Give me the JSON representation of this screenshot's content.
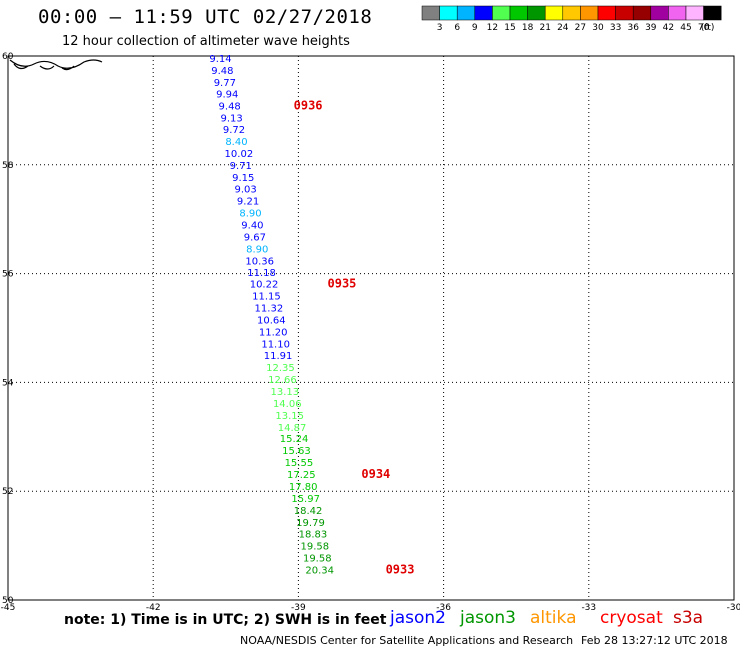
{
  "header": {
    "title": "00:00 – 11:59 UTC 02/27/2018",
    "subtitle": "12 hour collection of altimeter wave heights"
  },
  "colorbar": {
    "unit": "(ft)",
    "colors": [
      "#808080",
      "#00ffff",
      "#00b4ff",
      "#0000ff",
      "#50ff50",
      "#00c800",
      "#009600",
      "#ffff00",
      "#ffc800",
      "#ff9600",
      "#ff0000",
      "#c80000",
      "#960000",
      "#a000a0",
      "#f064f0",
      "#ffb4ff",
      "#000000"
    ],
    "labels": [
      "3",
      "6",
      "9",
      "12",
      "15",
      "18",
      "21",
      "24",
      "27",
      "30",
      "33",
      "36",
      "39",
      "42",
      "45",
      "70"
    ]
  },
  "footer": {
    "note": "note: 1) Time is in UTC; 2) SWH is in feet",
    "credit": "NOAA/NESDIS Center for Satellite Applications and Research",
    "timestamp": "Feb 28 13:27:12 UTC 2018"
  },
  "satellites": [
    {
      "name": "jason2",
      "color": "#0000ff"
    },
    {
      "name": "jason3",
      "color": "#009600"
    },
    {
      "name": "altika",
      "color": "#ff9600"
    },
    {
      "name": "cryosat",
      "color": "#ff0000"
    },
    {
      "name": "s3a",
      "color": "#c80000"
    }
  ],
  "chart_data": {
    "type": "scatter",
    "title": "12 hour collection of altimeter wave heights",
    "xlim": [
      -45,
      -30
    ],
    "ylim": [
      50,
      60
    ],
    "x_ticks": [
      -45,
      -42,
      -39,
      -36,
      -33,
      -30
    ],
    "x_tick_labels": [
      "-45",
      "-42",
      "-39",
      "-36",
      "-33",
      "-30"
    ],
    "y_ticks": [
      50,
      52,
      54,
      56,
      58,
      60
    ],
    "y_tick_labels": [
      "50",
      "52",
      "54",
      "56",
      "58",
      "60"
    ],
    "grid": true,
    "series": [
      {
        "name": "jason2",
        "points": [
          {
            "lon": -40.61,
            "lat": 59.89,
            "swh": "9.14"
          },
          {
            "lon": -40.57,
            "lat": 59.67,
            "swh": "9.48"
          },
          {
            "lon": -40.52,
            "lat": 59.45,
            "swh": "9.77"
          },
          {
            "lon": -40.47,
            "lat": 59.24,
            "swh": "9.94"
          },
          {
            "lon": -40.42,
            "lat": 59.02,
            "swh": "9.48"
          },
          {
            "lon": -40.38,
            "lat": 58.8,
            "swh": "9.13"
          },
          {
            "lon": -40.33,
            "lat": 58.58,
            "swh": "9.72"
          },
          {
            "lon": -40.28,
            "lat": 58.36,
            "swh": "8.40"
          },
          {
            "lon": -40.23,
            "lat": 58.14,
            "swh": "10.02"
          },
          {
            "lon": -40.19,
            "lat": 57.92,
            "swh": "9.71"
          },
          {
            "lon": -40.14,
            "lat": 57.7,
            "swh": "9.15"
          },
          {
            "lon": -40.09,
            "lat": 57.49,
            "swh": "9.03"
          },
          {
            "lon": -40.04,
            "lat": 57.27,
            "swh": "9.21"
          },
          {
            "lon": -39.99,
            "lat": 57.05,
            "swh": "8.90"
          },
          {
            "lon": -39.95,
            "lat": 56.83,
            "swh": "9.40"
          },
          {
            "lon": -39.9,
            "lat": 56.61,
            "swh": "9.67"
          },
          {
            "lon": -39.85,
            "lat": 56.39,
            "swh": "8.90"
          },
          {
            "lon": -39.8,
            "lat": 56.17,
            "swh": "10.36"
          },
          {
            "lon": -39.76,
            "lat": 55.96,
            "swh": "11.18"
          },
          {
            "lon": -39.71,
            "lat": 55.74,
            "swh": "10.22"
          },
          {
            "lon": -39.66,
            "lat": 55.52,
            "swh": "11.15"
          },
          {
            "lon": -39.61,
            "lat": 55.3,
            "swh": "11.32"
          },
          {
            "lon": -39.56,
            "lat": 55.08,
            "swh": "10.64"
          },
          {
            "lon": -39.52,
            "lat": 54.86,
            "swh": "11.20"
          },
          {
            "lon": -39.47,
            "lat": 54.64,
            "swh": "11.10"
          },
          {
            "lon": -39.42,
            "lat": 54.43,
            "swh": "11.91"
          },
          {
            "lon": -39.37,
            "lat": 54.21,
            "swh": "12.35"
          },
          {
            "lon": -39.33,
            "lat": 53.99,
            "swh": "12.66"
          },
          {
            "lon": -39.28,
            "lat": 53.77,
            "swh": "13.13"
          },
          {
            "lon": -39.23,
            "lat": 53.55,
            "swh": "14.06"
          },
          {
            "lon": -39.18,
            "lat": 53.33,
            "swh": "13.15"
          },
          {
            "lon": -39.13,
            "lat": 53.11,
            "swh": "14.87"
          },
          {
            "lon": -39.09,
            "lat": 52.9,
            "swh": "15.24"
          },
          {
            "lon": -39.04,
            "lat": 52.68,
            "swh": "15.63"
          },
          {
            "lon": -38.99,
            "lat": 52.46,
            "swh": "15.55"
          },
          {
            "lon": -38.94,
            "lat": 52.24,
            "swh": "17.25"
          },
          {
            "lon": -38.9,
            "lat": 52.02,
            "swh": "17.80"
          },
          {
            "lon": -38.85,
            "lat": 51.8,
            "swh": "15.97"
          },
          {
            "lon": -38.8,
            "lat": 51.58,
            "swh": "18.42"
          },
          {
            "lon": -38.75,
            "lat": 51.36,
            "swh": "19.79"
          },
          {
            "lon": -38.7,
            "lat": 51.15,
            "swh": "18.83"
          },
          {
            "lon": -38.66,
            "lat": 50.93,
            "swh": "19.58"
          },
          {
            "lon": -38.61,
            "lat": 50.71,
            "swh": "19.58"
          },
          {
            "lon": -38.56,
            "lat": 50.49,
            "swh": "20.34"
          }
        ],
        "time_labels": [
          {
            "lon": -38.8,
            "lat": 59.02,
            "text": "0936"
          },
          {
            "lon": -38.1,
            "lat": 55.74,
            "text": "0935"
          },
          {
            "lon": -37.4,
            "lat": 52.24,
            "text": "0934"
          },
          {
            "lon": -36.9,
            "lat": 50.49,
            "text": "0933"
          }
        ]
      }
    ]
  }
}
